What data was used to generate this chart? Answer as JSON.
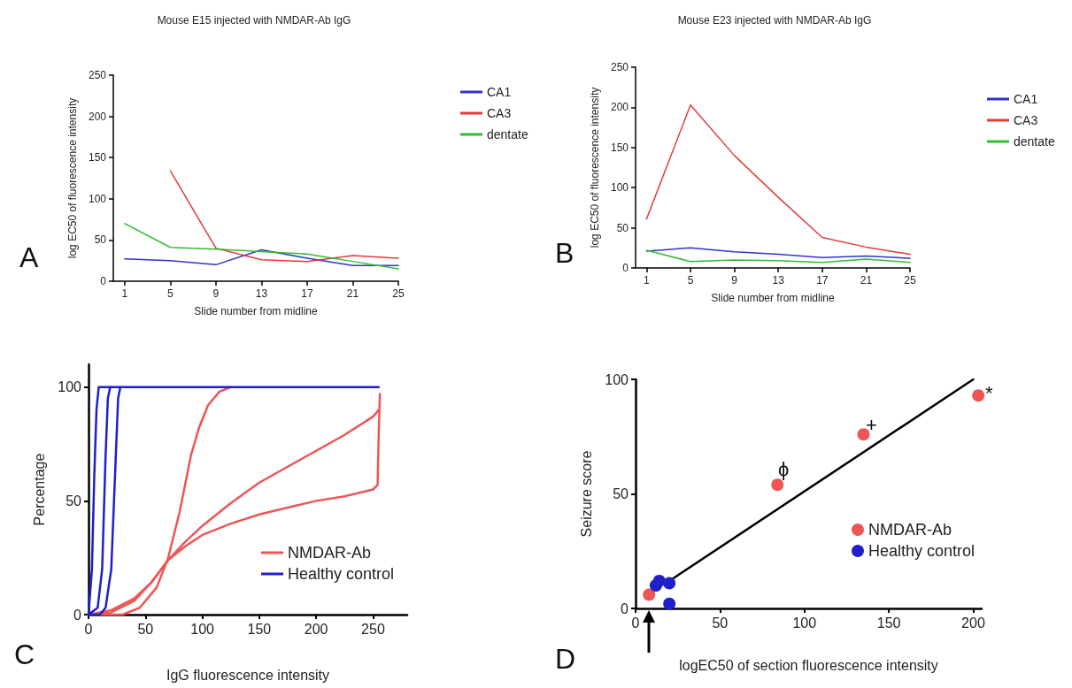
{
  "chart_data": [
    {
      "type": "line",
      "title": "Mouse E15 injected with NMDAR-Ab IgG",
      "xlabel": "Slide number from midline",
      "ylabel": "log EC50 of fluorescence intensity",
      "annotations": [
        "A"
      ],
      "x": [
        1,
        5,
        9,
        13,
        17,
        21,
        25
      ],
      "xlim": [
        0,
        25
      ],
      "xticks": [
        1,
        5,
        9,
        13,
        17,
        21,
        25
      ],
      "ylim": [
        0,
        250
      ],
      "yticks": [
        0,
        50,
        100,
        150,
        200,
        250
      ],
      "legend": "top right",
      "marker": "none",
      "series": [
        {
          "name": "CA1",
          "color": "#3333cc",
          "values": [
            27,
            25,
            20,
            38,
            28,
            19,
            19
          ]
        },
        {
          "name": "CA3",
          "color": "#e03c3c",
          "values": [
            null,
            134,
            40,
            26,
            24,
            31,
            28
          ]
        },
        {
          "name": "dentate",
          "color": "#33bb33",
          "values": [
            70,
            41,
            39,
            36,
            33,
            24,
            15
          ]
        }
      ]
    },
    {
      "type": "line",
      "title": "Mouse E23 injected with NMDAR-Ab IgG",
      "xlabel": "Slide number from midline",
      "ylabel": "log EC50 of fluorescence intensity",
      "annotations": [
        "B"
      ],
      "x": [
        1,
        5,
        9,
        13,
        17,
        21,
        25
      ],
      "xlim": [
        0,
        25
      ],
      "xticks": [
        1,
        5,
        9,
        13,
        17,
        21,
        25
      ],
      "ylim": [
        0,
        250
      ],
      "yticks": [
        0,
        50,
        100,
        150,
        200,
        250
      ],
      "legend": "top right",
      "marker": "none",
      "series": [
        {
          "name": "CA1",
          "color": "#3333cc",
          "values": [
            21,
            25,
            20,
            17,
            13,
            15,
            12
          ]
        },
        {
          "name": "CA3",
          "color": "#e03c3c",
          "values": [
            61,
            203,
            140,
            88,
            38,
            26,
            17
          ]
        },
        {
          "name": "dentate",
          "color": "#33bb33",
          "values": [
            22,
            8,
            10,
            9,
            7,
            11,
            7
          ]
        }
      ]
    },
    {
      "type": "line",
      "xlabel": "IgG fluorescence intensity",
      "ylabel": "Percentage",
      "annotations": [
        "C"
      ],
      "xlim": [
        0,
        280
      ],
      "xticks": [
        0,
        50,
        100,
        150,
        200,
        250
      ],
      "ylim": [
        0,
        110
      ],
      "yticks": [
        0,
        50,
        100
      ],
      "legend": "bottom right",
      "marker": "none",
      "series": [
        {
          "name": "NMDAR-Ab",
          "color": "#ee5555",
          "x": [
            0,
            30,
            45,
            60,
            70,
            80,
            90,
            97,
            105,
            115,
            125
          ],
          "values": [
            0,
            0,
            3,
            12,
            25,
            45,
            70,
            82,
            92,
            98,
            100
          ]
        },
        {
          "color": "#ee5555",
          "x": [
            0,
            20,
            40,
            55,
            70,
            85,
            100,
            125,
            150,
            175,
            200,
            225,
            250,
            255
          ],
          "values": [
            0,
            2,
            7,
            14,
            24,
            32,
            39,
            49,
            58,
            65,
            72,
            79,
            87,
            90
          ]
        },
        {
          "color": "#ee5555",
          "x": [
            0,
            20,
            40,
            55,
            70,
            85,
            100,
            125,
            150,
            175,
            200,
            225,
            250,
            254,
            255,
            256
          ],
          "values": [
            0,
            1,
            6,
            14,
            24,
            30,
            35,
            40,
            44,
            47,
            50,
            52,
            55,
            57,
            80,
            97
          ]
        },
        {
          "name": "Healthy control",
          "color": "#1f1fcc",
          "x": [
            0,
            3,
            5,
            7,
            9,
            255
          ],
          "values": [
            0,
            20,
            60,
            90,
            100,
            100
          ]
        },
        {
          "color": "#1f1fcc",
          "x": [
            0,
            8,
            12,
            15,
            17,
            19
          ],
          "values": [
            0,
            3,
            20,
            70,
            95,
            100
          ]
        },
        {
          "color": "#1f1fcc",
          "x": [
            0,
            10,
            15,
            20,
            24,
            26,
            28
          ],
          "values": [
            0,
            0,
            3,
            20,
            70,
            95,
            100
          ]
        }
      ]
    },
    {
      "type": "scatter",
      "xlabel": "logEC50 of section fluorescence intensity",
      "ylabel": "Seizure score",
      "annotations": [
        "D",
        "ϕ",
        "+",
        "*"
      ],
      "xlim": [
        0,
        205
      ],
      "xticks": [
        0,
        50,
        100,
        150,
        200
      ],
      "ylim": [
        0,
        100
      ],
      "yticks": [
        0,
        50,
        100
      ],
      "legend": "bottom right",
      "marker": "circle",
      "series": [
        {
          "name": "NMDAR-Ab",
          "color": "#ee5555",
          "x": [
            8,
            84,
            135,
            203
          ],
          "values": [
            6,
            54,
            76,
            93
          ]
        },
        {
          "name": "Healthy control",
          "color": "#1f1fcc",
          "x": [
            12,
            14,
            20,
            20
          ],
          "values": [
            10,
            12,
            11,
            2
          ]
        },
        {
          "type": "line",
          "marker": "none",
          "color": "#000000",
          "x": [
            20,
            200
          ],
          "values": [
            12,
            100
          ]
        }
      ]
    }
  ]
}
